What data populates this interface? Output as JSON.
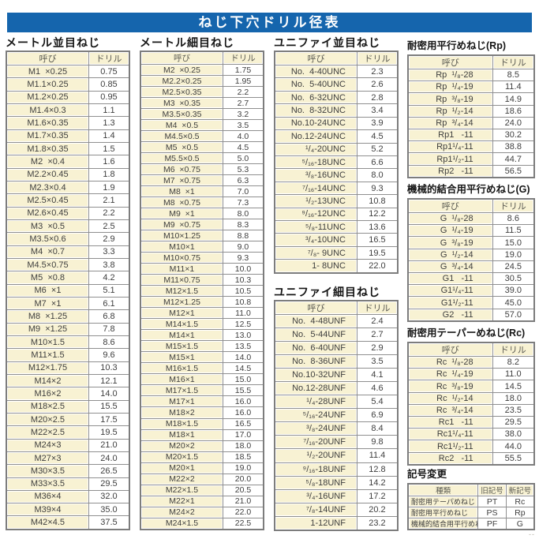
{
  "title": "ねじ下穴ドリル径表",
  "corner_mark": "--",
  "colors": {
    "accent_blue": "#1565ad",
    "cell_cream": "#f8f2d3",
    "border_gray": "#8f8f8f"
  },
  "sections": {
    "metric_coarse": {
      "title": "メートル並目ねじ",
      "headers": [
        "呼び",
        "ドリル"
      ],
      "rows": [
        [
          "M1  ×0.25",
          "0.75"
        ],
        [
          "M1.1×0.25",
          "0.85"
        ],
        [
          "M1.2×0.25",
          "0.95"
        ],
        [
          "M1.4×0.3",
          "1.1"
        ],
        [
          "M1.6×0.35",
          "1.3"
        ],
        [
          "M1.7×0.35",
          "1.4"
        ],
        [
          "M1.8×0.35",
          "1.5"
        ],
        [
          "M2  ×0.4",
          "1.6"
        ],
        [
          "M2.2×0.45",
          "1.8"
        ],
        [
          "M2.3×0.4",
          "1.9"
        ],
        [
          "M2.5×0.45",
          "2.1"
        ],
        [
          "M2.6×0.45",
          "2.2"
        ],
        [
          "M3  ×0.5",
          "2.5"
        ],
        [
          "M3.5×0.6",
          "2.9"
        ],
        [
          "M4  ×0.7",
          "3.3"
        ],
        [
          "M4.5×0.75",
          "3.8"
        ],
        [
          "M5  ×0.8",
          "4.2"
        ],
        [
          "M6  ×1",
          "5.1"
        ],
        [
          "M7  ×1",
          "6.1"
        ],
        [
          "M8  ×1.25",
          "6.8"
        ],
        [
          "M9  ×1.25",
          "7.8"
        ],
        [
          "M10×1.5",
          "8.6"
        ],
        [
          "M11×1.5",
          "9.6"
        ],
        [
          "M12×1.75",
          "10.3"
        ],
        [
          "M14×2",
          "12.1"
        ],
        [
          "M16×2",
          "14.0"
        ],
        [
          "M18×2.5",
          "15.5"
        ],
        [
          "M20×2.5",
          "17.5"
        ],
        [
          "M22×2.5",
          "19.5"
        ],
        [
          "M24×3",
          "21.0"
        ],
        [
          "M27×3",
          "24.0"
        ],
        [
          "M30×3.5",
          "26.5"
        ],
        [
          "M33×3.5",
          "29.5"
        ],
        [
          "M36×4",
          "32.0"
        ],
        [
          "M39×4",
          "35.0"
        ],
        [
          "M42×4.5",
          "37.5"
        ]
      ]
    },
    "metric_fine": {
      "title": "メートル細目ねじ",
      "headers": [
        "呼び",
        "ドリル"
      ],
      "rows": [
        [
          "M2  ×0.25",
          "1.75"
        ],
        [
          "M2.2×0.25",
          "1.95"
        ],
        [
          "M2.5×0.35",
          "2.2"
        ],
        [
          "M3  ×0.35",
          "2.7"
        ],
        [
          "M3.5×0.35",
          "3.2"
        ],
        [
          "M4  ×0.5",
          "3.5"
        ],
        [
          "M4.5×0.5",
          "4.0"
        ],
        [
          "M5  ×0.5",
          "4.5"
        ],
        [
          "M5.5×0.5",
          "5.0"
        ],
        [
          "M6  ×0.75",
          "5.3"
        ],
        [
          "M7  ×0.75",
          "6.3"
        ],
        [
          "M8  ×1",
          "7.0"
        ],
        [
          "M8  ×0.75",
          "7.3"
        ],
        [
          "M9  ×1",
          "8.0"
        ],
        [
          "M9  ×0.75",
          "8.3"
        ],
        [
          "M10×1.25",
          "8.8"
        ],
        [
          "M10×1",
          "9.0"
        ],
        [
          "M10×0.75",
          "9.3"
        ],
        [
          "M11×1",
          "10.0"
        ],
        [
          "M11×0.75",
          "10.3"
        ],
        [
          "M12×1.5",
          "10.5"
        ],
        [
          "M12×1.25",
          "10.8"
        ],
        [
          "M12×1",
          "11.0"
        ],
        [
          "M14×1.5",
          "12.5"
        ],
        [
          "M14×1",
          "13.0"
        ],
        [
          "M15×1.5",
          "13.5"
        ],
        [
          "M15×1",
          "14.0"
        ],
        [
          "M16×1.5",
          "14.5"
        ],
        [
          "M16×1",
          "15.0"
        ],
        [
          "M17×1.5",
          "15.5"
        ],
        [
          "M17×1",
          "16.0"
        ],
        [
          "M18×2",
          "16.0"
        ],
        [
          "M18×1.5",
          "16.5"
        ],
        [
          "M18×1",
          "17.0"
        ],
        [
          "M20×2",
          "18.0"
        ],
        [
          "M20×1.5",
          "18.5"
        ],
        [
          "M20×1",
          "19.0"
        ],
        [
          "M22×2",
          "20.0"
        ],
        [
          "M22×1.5",
          "20.5"
        ],
        [
          "M22×1",
          "21.0"
        ],
        [
          "M24×2",
          "22.0"
        ],
        [
          "M24×1.5",
          "22.5"
        ]
      ]
    },
    "unc": {
      "title": "ユニファイ並目ねじ",
      "headers": [
        "呼び",
        "ドリル"
      ],
      "rows": [
        [
          "No.  4-40UNC",
          "2.3"
        ],
        [
          "No.  5-40UNC",
          "2.6"
        ],
        [
          "No.  6-32UNC",
          "2.8"
        ],
        [
          "No.  8-32UNC",
          "3.4"
        ],
        [
          "No.10-24UNC",
          "3.9"
        ],
        [
          "No.12-24UNC",
          "4.5"
        ],
        [
          "¹/₄-20UNC",
          "5.2"
        ],
        [
          "⁵/₁₆-18UNC",
          "6.6"
        ],
        [
          "³/₈-16UNC",
          "8.0"
        ],
        [
          "⁷/₁₆-14UNC",
          "9.3"
        ],
        [
          "¹/₂-13UNC",
          "10.8"
        ],
        [
          "⁹/₁₆-12UNC",
          "12.2"
        ],
        [
          "⁵/₈-11UNC",
          "13.6"
        ],
        [
          "³/₄-10UNC",
          "16.5"
        ],
        [
          "⁷/₈- 9UNC",
          "19.5"
        ],
        [
          "1- 8UNC",
          "22.0"
        ]
      ]
    },
    "unf": {
      "title": "ユニファイ細目ねじ",
      "headers": [
        "呼び",
        "ドリル"
      ],
      "rows": [
        [
          "No.  4-48UNF",
          "2.4"
        ],
        [
          "No.  5-44UNF",
          "2.7"
        ],
        [
          "No.  6-40UNF",
          "2.9"
        ],
        [
          "No.  8-36UNF",
          "3.5"
        ],
        [
          "No.10-32UNF",
          "4.1"
        ],
        [
          "No.12-28UNF",
          "4.6"
        ],
        [
          "¹/₄-28UNF",
          "5.4"
        ],
        [
          "⁵/₁₆-24UNF",
          "6.9"
        ],
        [
          "³/₈-24UNF",
          "8.4"
        ],
        [
          "⁷/₁₆-20UNF",
          "9.8"
        ],
        [
          "¹/₂-20UNF",
          "11.4"
        ],
        [
          "⁹/₁₆-18UNF",
          "12.8"
        ],
        [
          "⁵/₈-18UNF",
          "14.2"
        ],
        [
          "³/₄-16UNF",
          "17.2"
        ],
        [
          "⁷/₈-14UNF",
          "20.2"
        ],
        [
          "1-12UNF",
          "23.2"
        ]
      ]
    },
    "rp": {
      "title": "耐密用平行めねじ(Rp)",
      "headers": [
        "呼び",
        "ドリル"
      ],
      "rows": [
        [
          "Rp  ¹/₈-28",
          "8.5"
        ],
        [
          "Rp  ¹/₄-19",
          "11.4"
        ],
        [
          "Rp  ³/₈-19",
          "14.9"
        ],
        [
          "Rp  ¹/₂-14",
          "18.6"
        ],
        [
          "Rp  ³/₄-14",
          "24.0"
        ],
        [
          "Rp1   -11",
          "30.2"
        ],
        [
          "Rp1¹/₄-11",
          "38.8"
        ],
        [
          "Rp1¹/₂-11",
          "44.7"
        ],
        [
          "Rp2   -11",
          "56.5"
        ]
      ]
    },
    "g": {
      "title": "機械的結合用平行めねじ(G)",
      "headers": [
        "呼び",
        "ドリル"
      ],
      "rows": [
        [
          "G  ¹/₈-28",
          "8.6"
        ],
        [
          "G  ¹/₄-19",
          "11.5"
        ],
        [
          "G  ³/₈-19",
          "15.0"
        ],
        [
          "G  ¹/₂-14",
          "19.0"
        ],
        [
          "G  ³/₄-14",
          "24.5"
        ],
        [
          "G1   -11",
          "30.5"
        ],
        [
          "G1¹/₄-11",
          "39.0"
        ],
        [
          "G1¹/₂-11",
          "45.0"
        ],
        [
          "G2   -11",
          "57.0"
        ]
      ]
    },
    "rc": {
      "title": "耐密用テーパーめねじ(Rc)",
      "headers": [
        "呼び",
        "ドリル"
      ],
      "rows": [
        [
          "Rc  ¹/₈-28",
          "8.2"
        ],
        [
          "Rc  ¹/₄-19",
          "11.0"
        ],
        [
          "Rc  ³/₈-19",
          "14.5"
        ],
        [
          "Rc  ¹/₂-14",
          "18.0"
        ],
        [
          "Rc  ³/₄-14",
          "23.5"
        ],
        [
          "Rc1   -11",
          "29.5"
        ],
        [
          "Rc1¹/₄-11",
          "38.0"
        ],
        [
          "Rc1¹/₂-11",
          "44.0"
        ],
        [
          "Rc2   -11",
          "55.5"
        ]
      ]
    },
    "symbols": {
      "title": "記号変更",
      "headers": [
        "種類",
        "旧記号",
        "新記号"
      ],
      "rows": [
        [
          "耐密用テーパめねじ",
          "PT",
          "Rc"
        ],
        [
          "耐密用平行めねじ",
          "PS",
          "Rp"
        ],
        [
          "機械的結合用平行めねじ",
          "PF",
          "G"
        ]
      ]
    }
  }
}
